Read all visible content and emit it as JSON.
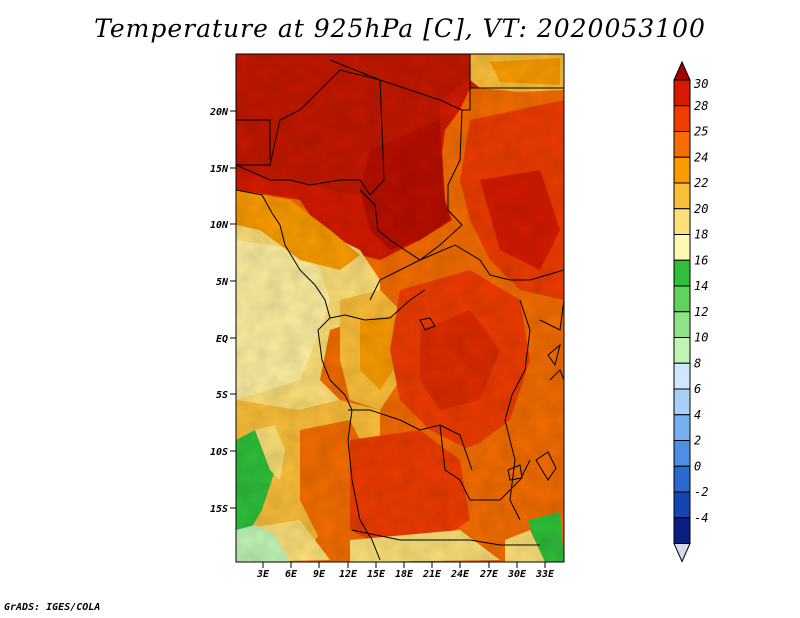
{
  "title": "Temperature at 925hPa [C], VT: 2020053100",
  "credit": "GrADS: IGES/COLA",
  "lat_labels": [
    "20N",
    "15N",
    "10N",
    "5N",
    "EQ",
    "5S",
    "10S",
    "15S"
  ],
  "lon_labels": [
    "3E",
    "6E",
    "9E",
    "12E",
    "15E",
    "18E",
    "21E",
    "24E",
    "27E",
    "30E",
    "33E"
  ],
  "colorbar": {
    "labels": [
      "30",
      "28",
      "25",
      "24",
      "22",
      "20",
      "18",
      "16",
      "14",
      "12",
      "10",
      "8",
      "6",
      "4",
      "2",
      "0",
      "-2",
      "-4"
    ],
    "colors_top_to_bottom": [
      "#a50000",
      "#d61a00",
      "#ef3c00",
      "#f56d00",
      "#fa9c00",
      "#fbbf3a",
      "#fde079",
      "#fef8b4",
      "#2fbf3a",
      "#5fd35a",
      "#8fe387",
      "#bff4b4",
      "#cfe8ff",
      "#a5d0fa",
      "#74b0f2",
      "#4b8fe6",
      "#2a69cf",
      "#1546b0",
      "#0a2080"
    ],
    "low_triangle_color": "#d8d8ee"
  }
}
